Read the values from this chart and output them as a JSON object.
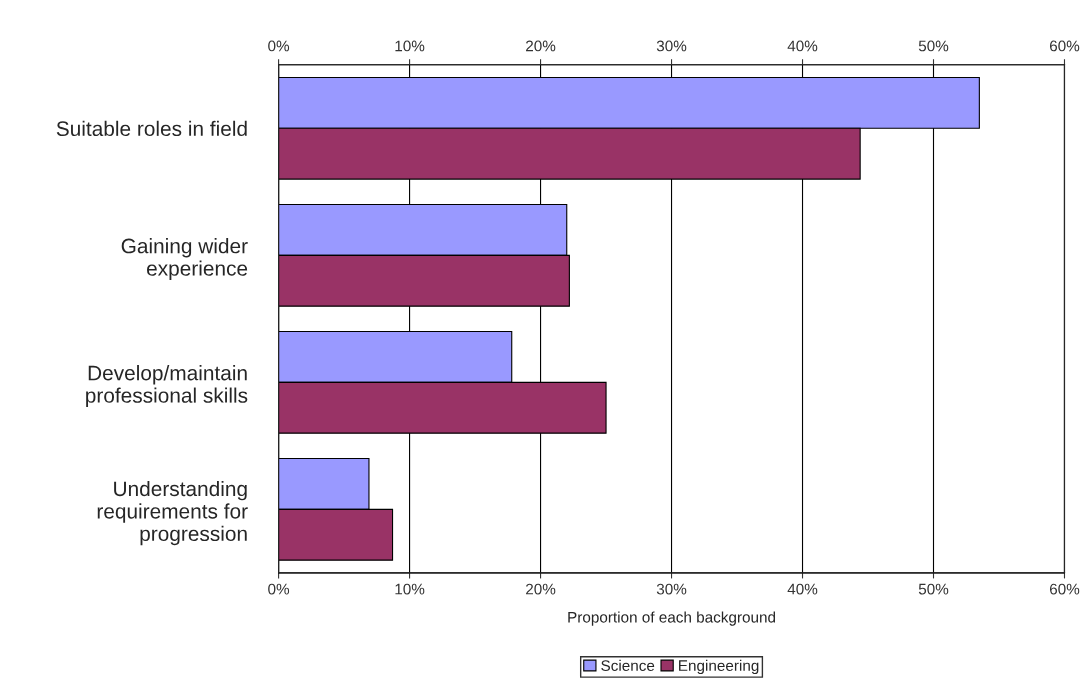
{
  "chart_data": {
    "type": "bar",
    "orientation": "horizontal",
    "xlabel": "Proportion of each background",
    "categories": [
      "Suitable roles in field",
      "Gaining wider\nexperience",
      "Develop/maintain\nprofessional skills",
      "Understanding\nrequirements for\nprogression"
    ],
    "series": [
      {
        "name": "Science",
        "color": "#9999ff",
        "values": [
          53.5,
          22.0,
          17.8,
          6.9
        ]
      },
      {
        "name": "Engineering",
        "color": "#993366",
        "values": [
          44.4,
          22.2,
          25.0,
          8.7
        ]
      }
    ],
    "xlim": [
      0,
      60
    ],
    "xticks": [
      {
        "value": 0,
        "label": "0%"
      },
      {
        "value": 10,
        "label": "10%"
      },
      {
        "value": 20,
        "label": "20%"
      },
      {
        "value": 30,
        "label": "30%"
      },
      {
        "value": 40,
        "label": "40%"
      },
      {
        "value": 50,
        "label": "50%"
      },
      {
        "value": 60,
        "label": "60%"
      }
    ],
    "x2lim": [
      0,
      60
    ],
    "x2ticks": [
      {
        "value": 0,
        "label": "0%"
      },
      {
        "value": 10,
        "label": "10%"
      },
      {
        "value": 20,
        "label": "20%"
      },
      {
        "value": 30,
        "label": "30%"
      },
      {
        "value": 40,
        "label": "40%"
      },
      {
        "value": 50,
        "label": "50%"
      },
      {
        "value": 60,
        "label": "60%"
      }
    ],
    "grid": "x",
    "legend": "bottom"
  }
}
